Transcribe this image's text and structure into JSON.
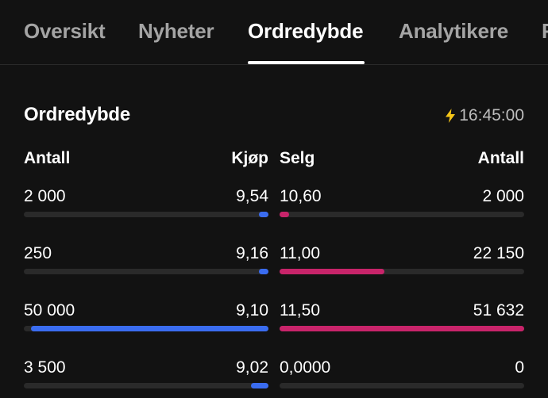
{
  "tabs": [
    {
      "label": "Oversikt",
      "active": false
    },
    {
      "label": "Nyheter",
      "active": false
    },
    {
      "label": "Ordredybde",
      "active": true
    },
    {
      "label": "Analytikere",
      "active": false
    },
    {
      "label": "F",
      "active": false
    }
  ],
  "orderbook": {
    "title": "Ordredybde",
    "time": "16:45:00",
    "time_icon": "lightning-bolt-icon",
    "headers": {
      "buy_qty": "Antall",
      "buy_price": "Kjøp",
      "sell_price": "Selg",
      "sell_qty": "Antall"
    },
    "rows": [
      {
        "buy_qty": "2 000",
        "buy_price": "9,54",
        "sell_price": "10,60",
        "sell_qty": "2 000",
        "buy_fill": 0.04,
        "sell_fill": 0.04
      },
      {
        "buy_qty": "250",
        "buy_price": "9,16",
        "sell_price": "11,00",
        "sell_qty": "22 150",
        "buy_fill": 0.04,
        "sell_fill": 0.43
      },
      {
        "buy_qty": "50 000",
        "buy_price": "9,10",
        "sell_price": "11,50",
        "sell_qty": "51 632",
        "buy_fill": 0.97,
        "sell_fill": 1.0
      },
      {
        "buy_qty": "3 500",
        "buy_price": "9,02",
        "sell_price": "0,0000",
        "sell_qty": "0",
        "buy_fill": 0.07,
        "sell_fill": 0
      }
    ]
  },
  "colors": {
    "background": "#121212",
    "buy": "#3a6cf0",
    "sell": "#c8246a",
    "track": "#2a2a2a",
    "bolt": "#f5c518"
  }
}
